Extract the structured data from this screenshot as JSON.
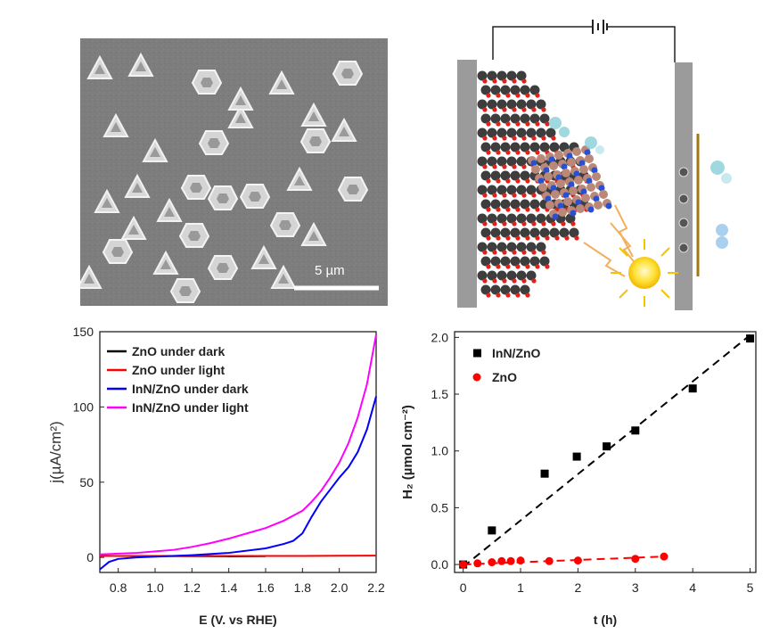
{
  "sem_panel": {
    "scale_bar_label": "5 µm"
  },
  "schematic_panel": {},
  "chart_data": [
    {
      "type": "line",
      "xlabel": "E (V. vs RHE)",
      "ylabel": "j(µA/cm²)",
      "xlim": [
        0.7,
        2.2
      ],
      "ylim": [
        -10,
        150
      ],
      "xticks": [
        "0.8",
        "1.0",
        "1.2",
        "1.4",
        "1.6",
        "1.8",
        "2.0",
        "2.2"
      ],
      "yticks": [
        "0",
        "50",
        "100",
        "150"
      ],
      "legend": "top-left",
      "series": [
        {
          "name": "ZnO under dark",
          "color": "#000000",
          "x": [
            0.7,
            1.0,
            1.2,
            1.4,
            1.6
          ],
          "y": [
            1.0,
            0.9,
            0.8,
            0.7,
            0.8
          ]
        },
        {
          "name": "ZnO under light",
          "color": "#ff0000",
          "x": [
            0.7,
            1.0,
            1.4,
            1.8,
            2.2
          ],
          "y": [
            1.0,
            1.0,
            1.0,
            1.0,
            1.2
          ]
        },
        {
          "name": "InN/ZnO under dark",
          "color": "#0000ff",
          "x": [
            0.7,
            0.75,
            0.8,
            0.9,
            1.0,
            1.2,
            1.4,
            1.6,
            1.7,
            1.75,
            1.8,
            1.85,
            1.9,
            1.95,
            2.0,
            2.05,
            2.1,
            2.15,
            2.2
          ],
          "y": [
            -8,
            -3,
            -1,
            0,
            0.5,
            1.5,
            3,
            6,
            9,
            11,
            16,
            27,
            37,
            45,
            53,
            60,
            70,
            85,
            107
          ]
        },
        {
          "name": "InN/ZnO under light",
          "color": "#ff00ff",
          "x": [
            0.7,
            0.8,
            0.9,
            1.0,
            1.1,
            1.2,
            1.3,
            1.4,
            1.5,
            1.6,
            1.7,
            1.8,
            1.85,
            1.9,
            1.95,
            2.0,
            2.05,
            2.1,
            2.15,
            2.2
          ],
          "y": [
            2,
            2.5,
            3,
            4,
            5,
            7,
            9.5,
            12.5,
            16,
            19.5,
            24.5,
            31,
            37,
            44,
            53,
            63,
            76,
            93,
            115,
            148
          ]
        }
      ]
    },
    {
      "type": "scatter",
      "xlabel": "t (h)",
      "ylabel": "H₂ (µmol cm⁻²)",
      "xlim": [
        -0.15,
        5.1
      ],
      "ylim": [
        -0.07,
        2.05
      ],
      "xticks": [
        "0",
        "1",
        "2",
        "3",
        "4",
        "5"
      ],
      "yticks": [
        "0.0",
        "0.5",
        "1.0",
        "1.5",
        "2.0"
      ],
      "legend": "top-left",
      "series": [
        {
          "name": "InN/ZnO",
          "color": "#000000",
          "marker": "square",
          "x": [
            0,
            0.5,
            1.42,
            1.98,
            2.5,
            3,
            4,
            5
          ],
          "y": [
            0,
            0.3,
            0.8,
            0.95,
            1.04,
            1.18,
            1.55,
            1.99
          ],
          "fit": {
            "x": [
              0,
              5
            ],
            "y": [
              -0.02,
              2.02
            ]
          }
        },
        {
          "name": "ZnO",
          "color": "#ff0000",
          "marker": "circle",
          "x": [
            0,
            0.25,
            0.5,
            0.67,
            0.83,
            1.0,
            1.5,
            2.0,
            3.0,
            3.5
          ],
          "y": [
            0,
            0.01,
            0.02,
            0.03,
            0.03,
            0.035,
            0.03,
            0.035,
            0.05,
            0.07
          ],
          "fit": {
            "x": [
              0,
              3.5
            ],
            "y": [
              0.0,
              0.07
            ]
          }
        }
      ]
    }
  ]
}
